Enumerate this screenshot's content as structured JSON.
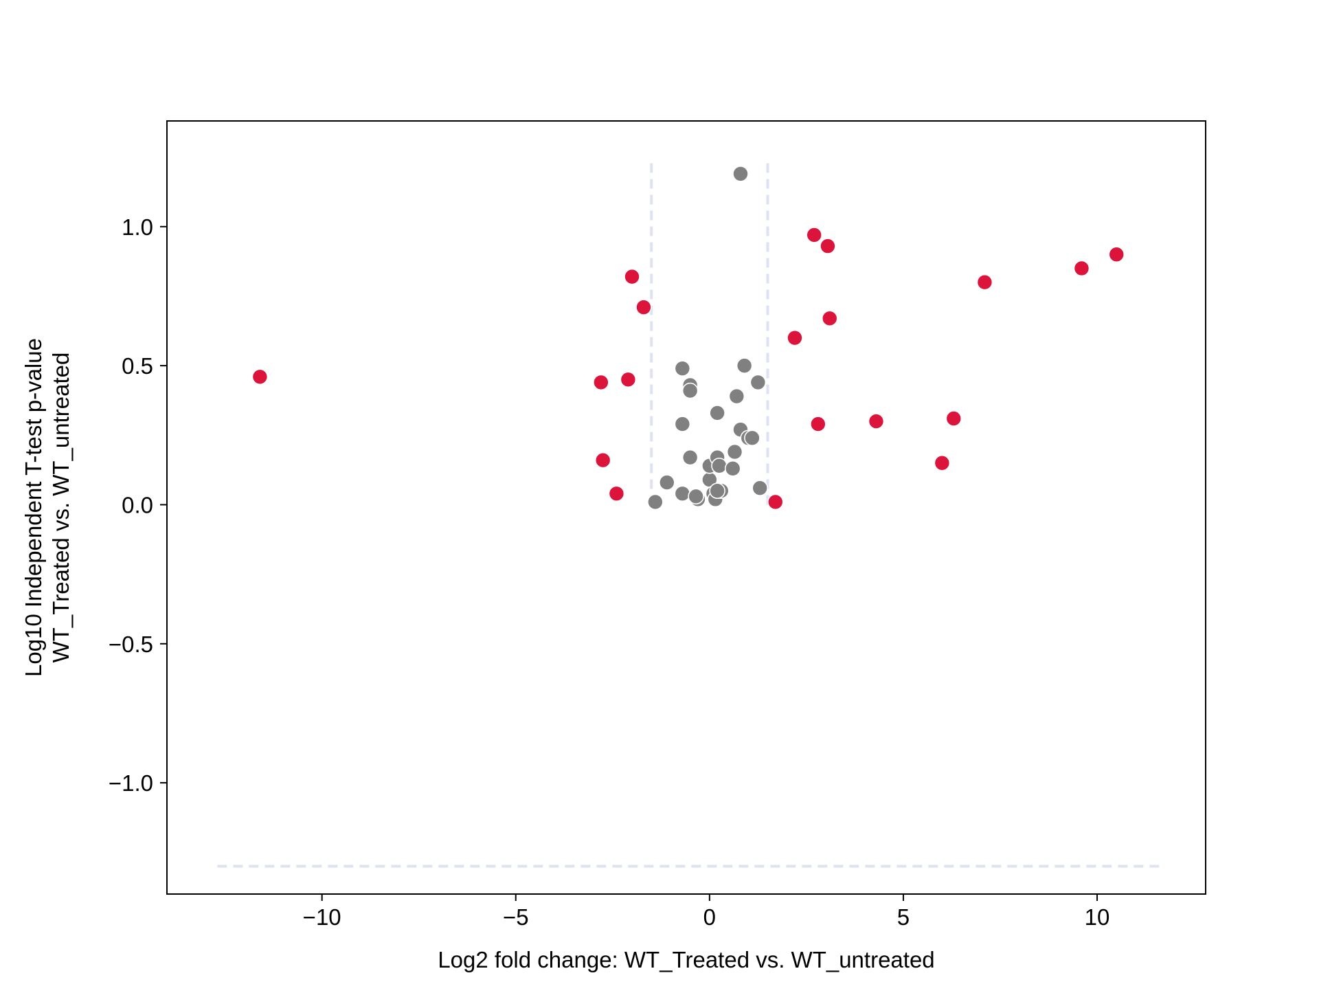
{
  "chart_data": {
    "type": "scatter",
    "xlabel": "Log2 fold change: WT_Treated vs. WT_untreated",
    "ylabel_lines": [
      "Log10 Independent T-test p-value",
      "WT_Treated vs. WT_untreated"
    ],
    "xlim": [
      -14.0,
      12.8
    ],
    "ylim": [
      -1.4,
      1.38
    ],
    "x_ticks": [
      -10,
      -5,
      0,
      5,
      10
    ],
    "x_tick_labels": [
      "−10",
      "−5",
      "0",
      "5",
      "10"
    ],
    "y_ticks": [
      -1.0,
      -0.5,
      0.0,
      0.5,
      1.0
    ],
    "y_tick_labels": [
      "−1.0",
      "−0.5",
      "0.0",
      "0.5",
      "1.0"
    ],
    "grid": false,
    "threshold_lines": {
      "vertical_x": [
        -1.5,
        1.5
      ],
      "vertical_y_range": [
        0.0,
        1.24
      ],
      "horizontal_y": -1.3,
      "horizontal_x_range": [
        -12.7,
        11.6
      ],
      "color": "#dde3f0"
    },
    "colors": {
      "significant": "#dc143c",
      "not_significant": "#808080"
    },
    "series": [
      {
        "color": "#dc143c",
        "points": [
          [
            -11.6,
            0.46
          ],
          [
            -2.8,
            0.44
          ],
          [
            -2.1,
            0.45
          ],
          [
            -2.0,
            0.82
          ],
          [
            -1.7,
            0.71
          ],
          [
            -2.75,
            0.16
          ],
          [
            -2.4,
            0.04
          ],
          [
            1.7,
            0.01
          ],
          [
            2.2,
            0.6
          ],
          [
            2.7,
            0.97
          ],
          [
            3.05,
            0.93
          ],
          [
            3.1,
            0.67
          ],
          [
            2.8,
            0.29
          ],
          [
            4.3,
            0.3
          ],
          [
            6.0,
            0.15
          ],
          [
            6.3,
            0.31
          ],
          [
            7.1,
            0.8
          ],
          [
            9.6,
            0.85
          ],
          [
            10.5,
            0.9
          ]
        ]
      },
      {
        "color": "#808080",
        "points": [
          [
            0.8,
            1.19
          ],
          [
            -0.7,
            0.49
          ],
          [
            -0.5,
            0.43
          ],
          [
            -0.5,
            0.41
          ],
          [
            -0.7,
            0.29
          ],
          [
            -0.5,
            0.17
          ],
          [
            -1.4,
            0.01
          ],
          [
            -1.1,
            0.08
          ],
          [
            -0.7,
            0.04
          ],
          [
            -0.3,
            0.02
          ],
          [
            -0.35,
            0.03
          ],
          [
            0.0,
            0.09
          ],
          [
            0.0,
            0.14
          ],
          [
            0.1,
            0.04
          ],
          [
            0.15,
            0.02
          ],
          [
            0.2,
            0.17
          ],
          [
            0.25,
            0.14
          ],
          [
            0.3,
            0.05
          ],
          [
            0.2,
            0.05
          ],
          [
            0.2,
            0.33
          ],
          [
            0.6,
            0.13
          ],
          [
            0.65,
            0.19
          ],
          [
            0.7,
            0.39
          ],
          [
            0.8,
            0.27
          ],
          [
            0.9,
            0.5
          ],
          [
            1.0,
            0.24
          ],
          [
            1.1,
            0.24
          ],
          [
            1.25,
            0.44
          ],
          [
            1.3,
            0.06
          ]
        ]
      }
    ]
  }
}
